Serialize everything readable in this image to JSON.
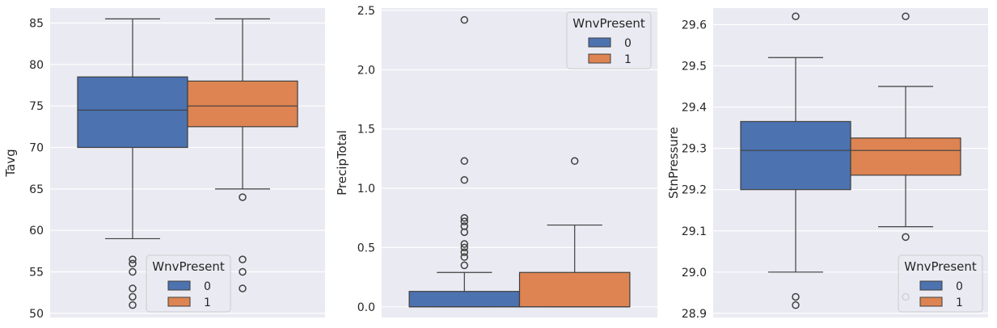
{
  "colors": {
    "background": "#eaeaf2",
    "grid": "#ffffff",
    "series0": "#4c72b0",
    "series1": "#dd8452",
    "edge": "#3f3f3f"
  },
  "chart_data": [
    {
      "type": "box",
      "ylabel": "Tavg",
      "ylim": [
        49.5,
        86.8
      ],
      "yticks": [
        50,
        55,
        60,
        65,
        70,
        75,
        80,
        85
      ],
      "grid": true,
      "legend": {
        "title": "WnvPresent",
        "entries": [
          "0",
          "1"
        ],
        "placement": "lower-right"
      },
      "series": [
        {
          "name": "0",
          "whisker_low": 59,
          "q1": 70,
          "median": 74.5,
          "q3": 78.5,
          "whisker_high": 85.5,
          "outliers": [
            56.5,
            56,
            55,
            53,
            52,
            51
          ]
        },
        {
          "name": "1",
          "whisker_low": 65,
          "q1": 72.5,
          "median": 75,
          "q3": 78,
          "whisker_high": 85.5,
          "outliers": [
            64,
            56.5,
            55,
            53
          ]
        }
      ]
    },
    {
      "type": "box",
      "ylabel": "PrecipTotal",
      "ylim": [
        -0.09,
        2.52
      ],
      "yticks": [
        0.0,
        0.5,
        1.0,
        1.5,
        2.0,
        2.5
      ],
      "grid": true,
      "legend": {
        "title": "WnvPresent",
        "entries": [
          "0",
          "1"
        ],
        "placement": "upper-right"
      },
      "series": [
        {
          "name": "0",
          "whisker_low": 0,
          "q1": 0,
          "median": 0,
          "q3": 0.13,
          "whisker_high": 0.29,
          "outliers": [
            0.35,
            0.42,
            0.46,
            0.5,
            0.53,
            0.63,
            0.68,
            0.72,
            0.75,
            1.07,
            1.23,
            2.42
          ]
        },
        {
          "name": "1",
          "whisker_low": 0,
          "q1": 0,
          "median": 0,
          "q3": 0.29,
          "whisker_high": 0.69,
          "outliers": [
            1.23
          ]
        }
      ]
    },
    {
      "type": "box",
      "ylabel": "StnPressure",
      "ylim": [
        28.89,
        29.64
      ],
      "yticks": [
        28.9,
        29.0,
        29.1,
        29.2,
        29.3,
        29.4,
        29.5,
        29.6
      ],
      "grid": true,
      "legend": {
        "title": "WnvPresent",
        "entries": [
          "0",
          "1"
        ],
        "placement": "lower-right"
      },
      "series": [
        {
          "name": "0",
          "whisker_low": 29.0,
          "q1": 29.2,
          "median": 29.295,
          "q3": 29.365,
          "whisker_high": 29.52,
          "outliers": [
            28.94,
            28.92,
            29.62
          ]
        },
        {
          "name": "1",
          "whisker_low": 29.11,
          "q1": 29.235,
          "median": 29.295,
          "q3": 29.325,
          "whisker_high": 29.45,
          "outliers": [
            29.085,
            28.94,
            29.62
          ]
        }
      ]
    }
  ]
}
